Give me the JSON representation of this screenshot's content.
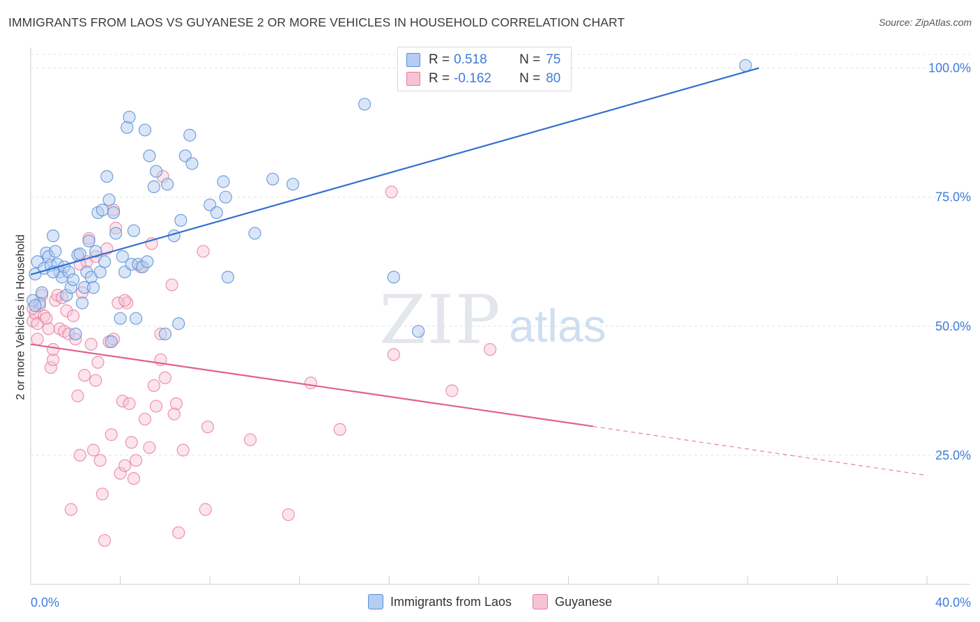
{
  "title": "IMMIGRANTS FROM LAOS VS GUYANESE 2 OR MORE VEHICLES IN HOUSEHOLD CORRELATION CHART",
  "source": "Source: ZipAtlas.com",
  "watermark": {
    "zip": "ZIP",
    "atlas": "atlas"
  },
  "legend_top": {
    "series1": {
      "r_label": "R =",
      "r_value": "0.518",
      "n_label": "N =",
      "n_value": "75"
    },
    "series2": {
      "r_label": "R =",
      "r_value": "-0.162",
      "n_label": "N =",
      "n_value": "80"
    }
  },
  "chart_data": {
    "type": "scatter",
    "title": "IMMIGRANTS FROM LAOS VS GUYANESE 2 OR MORE VEHICLES IN HOUSEHOLD CORRELATION CHART",
    "xlabel": "",
    "ylabel": "2 or more Vehicles in Household",
    "xlim": [
      0,
      40
    ],
    "ylim": [
      0,
      104
    ],
    "x_tick_labels": [
      "0.0%",
      "40.0%"
    ],
    "y_tick_labels": [
      "25.0%",
      "50.0%",
      "75.0%",
      "100.0%"
    ],
    "y_ticks": [
      25,
      50,
      75,
      100
    ],
    "grid": true,
    "legend_position": "top-center",
    "colors": {
      "blue": "#5a8fd8",
      "blue_fill": "#b5cdf0",
      "blue_line": "#2f6fcf",
      "pink": "#e8799d",
      "pink_fill": "#f6c3d3",
      "pink_line": "#e0628c",
      "axis_label": "#3f7bd8"
    },
    "series": [
      {
        "name": "Immigrants from Laos",
        "color": "#5a8fd8",
        "trend": {
          "x": [
            0,
            32.5
          ],
          "y": [
            60.0,
            100.0
          ]
        },
        "points": [
          [
            0.2,
            60.1
          ],
          [
            0.3,
            62.5
          ],
          [
            0.4,
            54.5
          ],
          [
            0.5,
            56.5
          ],
          [
            0.6,
            61.2
          ],
          [
            0.7,
            64.2
          ],
          [
            0.8,
            63.5
          ],
          [
            0.9,
            61.8
          ],
          [
            1.0,
            67.5
          ],
          [
            1.1,
            64.5
          ],
          [
            1.2,
            62.0
          ],
          [
            1.3,
            60.5
          ],
          [
            1.4,
            59.5
          ],
          [
            1.5,
            61.5
          ],
          [
            1.6,
            56.0
          ],
          [
            1.7,
            60.5
          ],
          [
            1.8,
            57.5
          ],
          [
            1.9,
            59.0
          ],
          [
            2.0,
            48.5
          ],
          [
            2.1,
            63.8
          ],
          [
            2.2,
            64.0
          ],
          [
            2.3,
            54.5
          ],
          [
            2.4,
            57.5
          ],
          [
            2.5,
            60.5
          ],
          [
            2.6,
            66.5
          ],
          [
            2.7,
            59.5
          ],
          [
            2.8,
            57.5
          ],
          [
            2.9,
            64.5
          ],
          [
            3.0,
            72.0
          ],
          [
            3.1,
            60.5
          ],
          [
            3.2,
            72.5
          ],
          [
            3.3,
            62.5
          ],
          [
            3.4,
            79.0
          ],
          [
            3.5,
            74.5
          ],
          [
            3.6,
            47.0
          ],
          [
            3.7,
            72.0
          ],
          [
            3.8,
            68.0
          ],
          [
            4.0,
            51.5
          ],
          [
            4.1,
            63.5
          ],
          [
            4.2,
            60.5
          ],
          [
            4.3,
            88.5
          ],
          [
            4.4,
            90.5
          ],
          [
            4.5,
            62.0
          ],
          [
            4.6,
            68.5
          ],
          [
            4.7,
            51.5
          ],
          [
            4.8,
            62.0
          ],
          [
            5.0,
            61.5
          ],
          [
            5.1,
            88.0
          ],
          [
            5.2,
            62.5
          ],
          [
            5.3,
            83.0
          ],
          [
            5.5,
            77.0
          ],
          [
            5.6,
            80.0
          ],
          [
            6.0,
            48.5
          ],
          [
            6.1,
            77.5
          ],
          [
            6.4,
            67.5
          ],
          [
            6.6,
            50.5
          ],
          [
            6.7,
            70.5
          ],
          [
            6.9,
            83.0
          ],
          [
            7.1,
            87.0
          ],
          [
            7.2,
            81.5
          ],
          [
            8.0,
            73.5
          ],
          [
            8.3,
            72.0
          ],
          [
            8.6,
            78.0
          ],
          [
            8.7,
            75.0
          ],
          [
            8.8,
            59.5
          ],
          [
            10.0,
            68.0
          ],
          [
            10.8,
            78.5
          ],
          [
            11.7,
            77.5
          ],
          [
            14.9,
            93.0
          ],
          [
            16.2,
            59.5
          ],
          [
            17.3,
            49.0
          ],
          [
            31.9,
            100.5
          ],
          [
            0.1,
            55.0
          ],
          [
            0.2,
            54.0
          ],
          [
            1.0,
            60.5
          ]
        ]
      },
      {
        "name": "Guyanese",
        "color": "#e8799d",
        "trend": {
          "x": [
            0,
            25.1
          ],
          "y": [
            46.5,
            30.6
          ],
          "dashed_to": [
            40,
            21.1
          ]
        },
        "points": [
          [
            0.1,
            51.0
          ],
          [
            0.2,
            52.5
          ],
          [
            0.3,
            50.5
          ],
          [
            0.4,
            54.0
          ],
          [
            0.5,
            56.0
          ],
          [
            0.6,
            52.0
          ],
          [
            0.7,
            51.5
          ],
          [
            0.8,
            49.5
          ],
          [
            0.9,
            42.0
          ],
          [
            1.0,
            43.5
          ],
          [
            1.1,
            55.0
          ],
          [
            1.2,
            56.0
          ],
          [
            1.3,
            49.5
          ],
          [
            1.4,
            55.5
          ],
          [
            1.5,
            49.0
          ],
          [
            1.6,
            53.0
          ],
          [
            1.7,
            48.5
          ],
          [
            1.8,
            14.5
          ],
          [
            1.9,
            52.0
          ],
          [
            2.0,
            47.5
          ],
          [
            2.1,
            36.5
          ],
          [
            2.2,
            25.0
          ],
          [
            2.3,
            56.5
          ],
          [
            2.4,
            40.5
          ],
          [
            2.5,
            62.5
          ],
          [
            2.6,
            67.0
          ],
          [
            2.7,
            46.5
          ],
          [
            2.8,
            26.0
          ],
          [
            2.9,
            39.5
          ],
          [
            3.0,
            43.0
          ],
          [
            3.1,
            24.0
          ],
          [
            3.2,
            17.5
          ],
          [
            3.3,
            8.5
          ],
          [
            3.4,
            65.0
          ],
          [
            3.5,
            47.0
          ],
          [
            3.6,
            29.0
          ],
          [
            3.7,
            72.5
          ],
          [
            3.8,
            69.0
          ],
          [
            4.0,
            21.5
          ],
          [
            4.1,
            35.5
          ],
          [
            4.2,
            23.0
          ],
          [
            4.3,
            54.5
          ],
          [
            4.4,
            35.0
          ],
          [
            4.5,
            27.5
          ],
          [
            4.6,
            20.5
          ],
          [
            4.7,
            24.0
          ],
          [
            4.9,
            61.5
          ],
          [
            5.1,
            32.0
          ],
          [
            5.3,
            26.5
          ],
          [
            5.4,
            66.0
          ],
          [
            5.5,
            38.5
          ],
          [
            5.6,
            34.5
          ],
          [
            5.8,
            43.5
          ],
          [
            5.9,
            79.0
          ],
          [
            6.0,
            40.0
          ],
          [
            6.3,
            58.0
          ],
          [
            6.4,
            33.0
          ],
          [
            6.5,
            35.0
          ],
          [
            6.6,
            10.0
          ],
          [
            6.8,
            26.0
          ],
          [
            7.7,
            64.5
          ],
          [
            7.8,
            14.5
          ],
          [
            7.9,
            30.5
          ],
          [
            9.8,
            28.0
          ],
          [
            11.5,
            13.5
          ],
          [
            12.5,
            39.0
          ],
          [
            13.8,
            30.0
          ],
          [
            16.1,
            76.0
          ],
          [
            16.2,
            44.5
          ],
          [
            18.8,
            37.5
          ],
          [
            20.5,
            45.5
          ],
          [
            0.1,
            53.5
          ],
          [
            0.3,
            47.5
          ],
          [
            1.0,
            45.5
          ],
          [
            2.2,
            62.0
          ],
          [
            3.9,
            54.5
          ],
          [
            4.2,
            55.0
          ],
          [
            5.8,
            48.5
          ],
          [
            3.7,
            47.5
          ],
          [
            2.9,
            63.5
          ]
        ]
      }
    ]
  },
  "bottom_legend": {
    "item1": "Immigrants from Laos",
    "item2": "Guyanese"
  }
}
